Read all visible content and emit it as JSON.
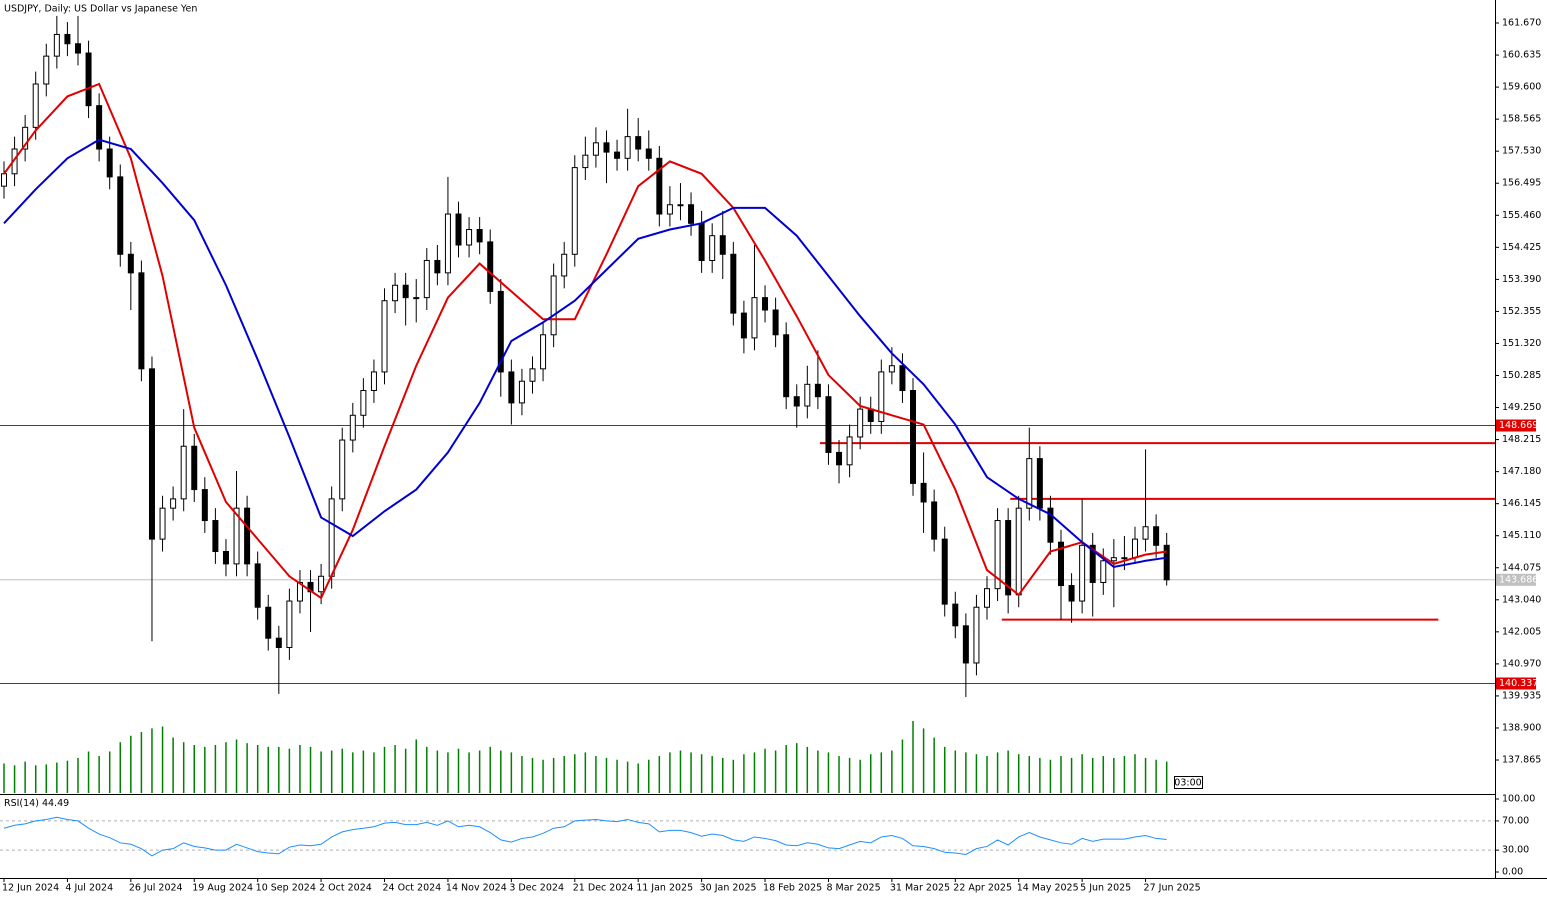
{
  "header": {
    "title": "USDJPY, Daily:  US Dollar vs Japanese Yen",
    "time_marker": "03:00"
  },
  "chart_data": [
    {
      "type": "candlestick",
      "xlim": [
        -0.378,
        141.06
      ],
      "xticks": [
        {
          "value": 0,
          "label": "12 Jun 2024"
        },
        {
          "value": 6,
          "label": "4 Jul 2024"
        },
        {
          "value": 12,
          "label": "26 Jul 2024"
        },
        {
          "value": 18,
          "label": "19 Aug 2024"
        },
        {
          "value": 24,
          "label": "10 Sep 2024"
        },
        {
          "value": 30,
          "label": "2 Oct 2024"
        },
        {
          "value": 36,
          "label": "24 Oct 2024"
        },
        {
          "value": 42,
          "label": "14 Nov 2024"
        },
        {
          "value": 48,
          "label": "3 Dec 2024"
        },
        {
          "value": 54,
          "label": "21 Dec 2024"
        },
        {
          "value": 60,
          "label": "11 Jan 2025"
        },
        {
          "value": 66,
          "label": "30 Jan 2025"
        },
        {
          "value": 72,
          "label": "18 Feb 2025"
        },
        {
          "value": 78,
          "label": "8 Mar 2025"
        },
        {
          "value": 84,
          "label": "31 Mar 2025"
        },
        {
          "value": 90,
          "label": "22 Apr 2025"
        },
        {
          "value": 96,
          "label": "14 May 2025"
        },
        {
          "value": 102,
          "label": "5 Jun 2025"
        },
        {
          "value": 108,
          "label": "27 Jun 2025"
        }
      ],
      "ylim": [
        136.8,
        162.413
      ],
      "yticks": [
        {
          "value": 161.67,
          "label": "161.670"
        },
        160.635,
        {
          "value": 159.6,
          "label": "159.600"
        },
        158.565,
        {
          "value": 157.53,
          "label": "157.530"
        },
        156.495,
        {
          "value": 155.46,
          "label": "155.460"
        },
        154.425,
        {
          "value": 153.39,
          "label": "153.390"
        },
        152.355,
        {
          "value": 151.32,
          "label": "151.320"
        },
        150.285,
        {
          "value": 149.25,
          "label": "149.250"
        },
        148.215,
        {
          "value": 147.18,
          "label": "147.180"
        },
        146.145,
        {
          "value": 145.11,
          "label": "145.110"
        },
        144.075,
        {
          "value": 143.04,
          "label": "143.040"
        },
        142.005,
        {
          "value": 140.97,
          "label": "140.970"
        },
        139.935,
        {
          "value": 138.9,
          "label": "138.900"
        },
        137.865
      ],
      "open": [
        156.4,
        156.8,
        157.6,
        158.3,
        159.7,
        160.6,
        161.3,
        161.0,
        160.7,
        159.0,
        157.6,
        156.7,
        154.2,
        153.6,
        150.5,
        145.0,
        146.0,
        146.3,
        148.0,
        146.6,
        145.6,
        144.6,
        144.2,
        146.0,
        144.2,
        142.8,
        141.8,
        141.5,
        143.0,
        143.6,
        143.3,
        143.8,
        146.3,
        148.2,
        149.0,
        149.8,
        150.4,
        152.7,
        153.2,
        152.8,
        152.8,
        154.0,
        153.6,
        155.5,
        154.5,
        155.0,
        154.6,
        153.0,
        150.4,
        149.4,
        150.1,
        150.5,
        151.6,
        153.5,
        154.2,
        157.0,
        157.4,
        157.8,
        157.5,
        157.3,
        158.0,
        157.6,
        157.3,
        155.5,
        155.8,
        155.8,
        155.2,
        154.0,
        154.8,
        154.2,
        152.3,
        151.5,
        152.8,
        152.4,
        151.6,
        149.6,
        149.3,
        150.0,
        149.6,
        147.8,
        147.4,
        148.3,
        149.2,
        148.8,
        150.4,
        150.6,
        149.8,
        146.8,
        146.2,
        145.0,
        142.9,
        142.2,
        141.0,
        142.8,
        143.4,
        145.6,
        143.2,
        146.0,
        147.6,
        146.0,
        144.9,
        143.5,
        143.0,
        144.8,
        143.6,
        144.3,
        144.4,
        144.4,
        145.0,
        145.4,
        144.8
      ],
      "high": [
        157.2,
        158.0,
        158.7,
        160.1,
        161.0,
        161.9,
        161.7,
        161.9,
        161.1,
        159.4,
        158.0,
        157.1,
        154.6,
        154.0,
        150.9,
        146.4,
        146.7,
        149.2,
        148.4,
        147.0,
        146.0,
        145.0,
        147.2,
        146.4,
        144.6,
        143.2,
        142.2,
        143.4,
        144.0,
        144.0,
        144.2,
        146.7,
        148.6,
        149.4,
        150.2,
        150.8,
        153.1,
        153.6,
        153.6,
        153.4,
        154.4,
        154.5,
        156.7,
        155.9,
        155.4,
        155.4,
        155.0,
        153.4,
        150.8,
        150.5,
        150.9,
        152.0,
        153.9,
        154.6,
        157.4,
        158.0,
        158.3,
        158.2,
        157.9,
        158.9,
        158.6,
        158.2,
        157.7,
        156.4,
        156.5,
        156.2,
        155.6,
        155.2,
        155.6,
        154.6,
        152.7,
        154.5,
        153.2,
        152.8,
        152.0,
        150.0,
        150.6,
        151.1,
        150.0,
        148.2,
        148.7,
        149.6,
        149.6,
        150.8,
        151.2,
        151.0,
        150.2,
        147.8,
        146.6,
        145.4,
        143.3,
        142.6,
        143.2,
        143.8,
        146.0,
        146.0,
        146.4,
        148.6,
        148.0,
        146.4,
        145.3,
        143.9,
        146.3,
        145.2,
        144.7,
        145.0,
        145.1,
        145.4,
        147.9,
        145.8,
        145.2
      ],
      "low": [
        156.0,
        156.4,
        157.2,
        157.9,
        159.3,
        160.2,
        160.6,
        160.3,
        158.6,
        157.2,
        156.3,
        153.8,
        152.4,
        150.1,
        141.7,
        144.6,
        145.6,
        145.9,
        146.2,
        145.2,
        144.2,
        143.8,
        143.8,
        143.8,
        142.4,
        141.4,
        140.0,
        141.1,
        142.6,
        142.0,
        142.9,
        143.4,
        145.9,
        147.8,
        148.6,
        149.4,
        150.0,
        152.3,
        151.9,
        152.0,
        152.4,
        153.2,
        153.2,
        154.1,
        154.1,
        154.2,
        152.6,
        149.6,
        148.7,
        149.0,
        149.7,
        150.1,
        151.2,
        153.1,
        153.8,
        156.6,
        157.0,
        156.5,
        156.9,
        156.9,
        157.2,
        156.9,
        155.1,
        155.1,
        155.3,
        154.8,
        153.6,
        153.6,
        153.4,
        151.9,
        151.0,
        151.1,
        152.0,
        151.2,
        149.2,
        148.6,
        148.9,
        149.2,
        147.4,
        146.8,
        147.0,
        147.9,
        148.4,
        148.4,
        150.0,
        149.4,
        146.4,
        145.2,
        144.6,
        142.5,
        141.8,
        139.9,
        140.6,
        142.4,
        143.0,
        142.6,
        142.8,
        145.6,
        145.6,
        144.5,
        142.4,
        142.3,
        142.6,
        142.5,
        143.2,
        142.8,
        144.0,
        144.2,
        144.6,
        144.4,
        143.5
      ],
      "close": [
        156.8,
        157.6,
        158.3,
        159.7,
        160.6,
        161.3,
        161.0,
        160.7,
        159.0,
        157.6,
        156.7,
        154.2,
        153.6,
        150.5,
        145.0,
        146.0,
        146.3,
        148.0,
        146.6,
        145.6,
        144.6,
        144.2,
        146.0,
        144.2,
        142.8,
        141.8,
        141.5,
        143.0,
        143.6,
        143.3,
        143.8,
        146.3,
        148.2,
        149.0,
        149.8,
        150.4,
        152.7,
        153.2,
        152.8,
        152.8,
        154.0,
        153.6,
        155.5,
        154.5,
        155.0,
        154.6,
        153.0,
        150.4,
        149.4,
        150.1,
        150.5,
        151.6,
        153.5,
        154.2,
        157.0,
        157.4,
        157.8,
        157.5,
        157.3,
        158.0,
        157.6,
        157.3,
        155.5,
        155.8,
        155.8,
        155.2,
        154.0,
        154.8,
        154.2,
        152.3,
        151.5,
        152.8,
        152.4,
        151.6,
        149.6,
        149.3,
        150.0,
        149.6,
        147.8,
        147.4,
        148.3,
        149.2,
        148.8,
        150.4,
        150.6,
        149.8,
        146.8,
        146.2,
        145.0,
        142.9,
        142.2,
        141.0,
        142.8,
        143.4,
        145.6,
        143.2,
        146.0,
        147.6,
        146.0,
        144.9,
        143.5,
        143.0,
        144.8,
        143.6,
        144.3,
        144.4,
        144.4,
        145.0,
        145.4,
        144.8,
        143.686
      ],
      "candle_color": "#000000",
      "series": [
        {
          "color": "#e00000",
          "x": [
            0,
            3,
            6,
            9,
            12,
            15,
            18,
            21,
            24,
            27,
            30,
            33,
            36,
            39,
            42,
            45,
            48,
            51,
            54,
            57,
            60,
            63,
            66,
            69,
            72,
            75,
            78,
            81,
            84,
            87,
            90,
            93,
            96,
            99,
            102,
            105,
            108,
            110
          ],
          "values": [
            156.8,
            158.2,
            159.3,
            159.7,
            157.3,
            153.5,
            148.6,
            146.2,
            145.0,
            143.8,
            143.1,
            145.3,
            148.0,
            150.6,
            152.8,
            153.9,
            153.0,
            152.1,
            152.1,
            154.2,
            156.4,
            157.2,
            156.8,
            155.7,
            154.0,
            152.2,
            150.3,
            149.3,
            149.0,
            148.7,
            146.6,
            144.0,
            143.2,
            144.6,
            144.9,
            144.2,
            144.5,
            144.6
          ]
        },
        {
          "color": "#0000d0",
          "x": [
            0,
            3,
            6,
            9,
            12,
            15,
            18,
            21,
            24,
            27,
            30,
            33,
            36,
            39,
            42,
            45,
            48,
            51,
            54,
            57,
            60,
            63,
            66,
            69,
            72,
            75,
            78,
            81,
            84,
            87,
            90,
            93,
            96,
            99,
            102,
            105,
            108,
            110
          ],
          "values": [
            155.2,
            156.3,
            157.3,
            157.9,
            157.6,
            156.5,
            155.3,
            153.2,
            150.8,
            148.3,
            145.7,
            145.1,
            145.9,
            146.6,
            147.8,
            149.4,
            151.4,
            152.0,
            152.7,
            153.7,
            154.7,
            155.0,
            155.2,
            155.7,
            155.7,
            154.8,
            153.5,
            152.2,
            151.0,
            150.0,
            148.7,
            147.0,
            146.3,
            145.8,
            144.9,
            144.1,
            144.3,
            144.4
          ]
        }
      ],
      "levels": [
        {
          "value": 148.669,
          "color": "#e00000"
        },
        {
          "value": 140.337,
          "color": "#e00000"
        }
      ],
      "segments": [
        {
          "value": 148.1,
          "start": 77.2,
          "end": 141.06,
          "color": "#e00000"
        },
        {
          "value": 146.3,
          "start": 95.2,
          "end": 141.06,
          "color": "#e00000"
        },
        {
          "value": 142.4,
          "start": 94.4,
          "end": 135.7,
          "color": "#e00000"
        }
      ],
      "volume": {
        "color": "#008000",
        "values": [
          32,
          30,
          34,
          30,
          31,
          33,
          35,
          38,
          45,
          40,
          45,
          55,
          62,
          66,
          70,
          72,
          60,
          55,
          52,
          50,
          52,
          55,
          58,
          54,
          52,
          50,
          50,
          48,
          52,
          50,
          45,
          46,
          48,
          44,
          46,
          44,
          50,
          52,
          48,
          58,
          50,
          46,
          44,
          48,
          44,
          46,
          50,
          46,
          44,
          40,
          38,
          36,
          38,
          40,
          42,
          44,
          40,
          38,
          36,
          34,
          32,
          36,
          40,
          44,
          46,
          44,
          42,
          40,
          38,
          36,
          42,
          44,
          48,
          46,
          52,
          54,
          50,
          46,
          44,
          40,
          38,
          36,
          42,
          44,
          46,
          58,
          78,
          70,
          60,
          50,
          46,
          44,
          42,
          40,
          44,
          46,
          42,
          40,
          38,
          36,
          40,
          38,
          42,
          38,
          40,
          38,
          40,
          42,
          38,
          36,
          34
        ]
      }
    },
    {
      "type": "line",
      "title": "RSI(14)",
      "color": "#1e90ff",
      "ylim": [
        -8.2,
        105.5
      ],
      "yticks": [
        {
          "value": 100,
          "label": "100.00"
        },
        {
          "value": 70,
          "label": "70.00"
        },
        {
          "value": 30,
          "label": "30.00"
        },
        {
          "value": 0,
          "label": "0.00"
        }
      ],
      "levels": [
        70,
        30
      ],
      "values": [
        60,
        64,
        66,
        70,
        72,
        75,
        72,
        70,
        60,
        52,
        47,
        40,
        38,
        32,
        22,
        30,
        32,
        40,
        35,
        33,
        30,
        30,
        38,
        33,
        28,
        26,
        25,
        34,
        37,
        36,
        38,
        48,
        55,
        58,
        60,
        62,
        67,
        68,
        65,
        65,
        68,
        64,
        70,
        62,
        64,
        62,
        54,
        44,
        41,
        46,
        48,
        53,
        60,
        62,
        70,
        71,
        72,
        70,
        69,
        72,
        68,
        66,
        55,
        57,
        57,
        54,
        49,
        52,
        50,
        44,
        42,
        48,
        46,
        43,
        37,
        36,
        40,
        38,
        33,
        32,
        37,
        42,
        40,
        48,
        50,
        46,
        36,
        35,
        32,
        27,
        26,
        24,
        32,
        35,
        44,
        37,
        48,
        54,
        48,
        44,
        40,
        38,
        46,
        42,
        45,
        45,
        45,
        48,
        50,
        46,
        44.49
      ]
    }
  ]
}
